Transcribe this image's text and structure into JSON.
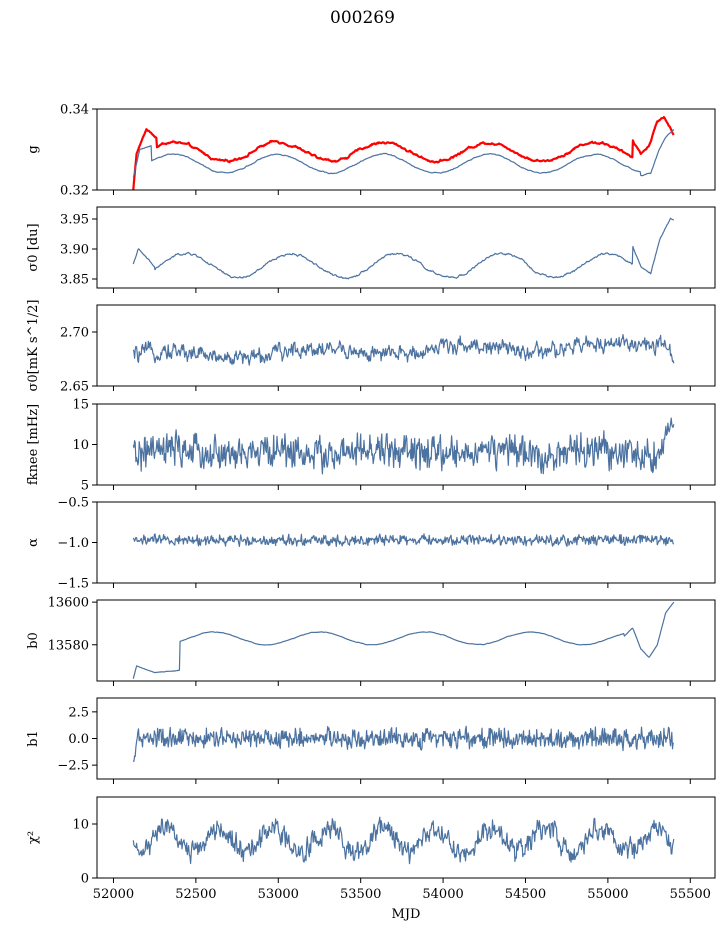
{
  "figure": {
    "title": "000269",
    "xlabel": "MJD"
  },
  "chart_data": {
    "type": "line",
    "x_range": [
      51900,
      55650
    ],
    "x_ticks": [
      52000,
      52500,
      53000,
      53500,
      54000,
      54500,
      55000,
      55500
    ],
    "x_tick_labels": [
      "52000",
      "52500",
      "53000",
      "53500",
      "54000",
      "54500",
      "55000",
      "55500"
    ],
    "x_start": 52120,
    "x_end": 55400,
    "panels": [
      {
        "id": "g",
        "ylabel": "g",
        "ylim": [
          0.32,
          0.34
        ],
        "y_ticks": [
          0.32,
          0.34
        ],
        "y_tick_labels": [
          "0.32",
          "0.34"
        ],
        "series": [
          {
            "color": "#ff0000",
            "width": 2.2,
            "model": "sine",
            "base": 0.3295,
            "amp": 0.0023,
            "period": 640,
            "phase": 52200,
            "noise": 0.0009,
            "smooth": 0.9,
            "anchors": [
              [
                52120,
                0.32
              ],
              [
                52140,
                0.329
              ],
              [
                52200,
                0.335
              ],
              [
                52260,
                0.333
              ]
            ],
            "tail": [
              [
                55150,
                0.3325
              ],
              [
                55200,
                0.329
              ],
              [
                55250,
                0.331
              ],
              [
                55300,
                0.337
              ],
              [
                55340,
                0.338
              ],
              [
                55370,
                0.336
              ],
              [
                55400,
                0.3335
              ]
            ]
          },
          {
            "color": "#4c72a0",
            "width": 1.2,
            "model": "sine",
            "base": 0.3265,
            "amp": 0.0023,
            "period": 640,
            "phase": 52200,
            "noise": 0.0004,
            "smooth": 0.9,
            "anchors": [
              [
                52120,
                0.323
              ],
              [
                52160,
                0.33
              ],
              [
                52230,
                0.331
              ]
            ],
            "tail": [
              [
                55200,
                0.3235
              ],
              [
                55260,
                0.324
              ],
              [
                55310,
                0.33
              ],
              [
                55350,
                0.333
              ],
              [
                55400,
                0.335
              ]
            ]
          }
        ]
      },
      {
        "id": "sigma0_du",
        "ylabel": "σ0 [du]",
        "ylim": [
          3.835,
          3.97
        ],
        "y_ticks": [
          3.85,
          3.9,
          3.95
        ],
        "y_tick_labels": [
          "3.85",
          "3.90",
          "3.95"
        ],
        "series": [
          {
            "color": "#4c72a0",
            "width": 1.2,
            "model": "sine",
            "base": 3.872,
            "amp": 0.02,
            "period": 640,
            "phase": 52280,
            "noise": 0.004,
            "smooth": 0.85,
            "anchors": [
              [
                52120,
                3.875
              ],
              [
                52150,
                3.9
              ],
              [
                52250,
                3.87
              ]
            ],
            "tail": [
              [
                55150,
                3.905
              ],
              [
                55200,
                3.87
              ],
              [
                55260,
                3.86
              ],
              [
                55320,
                3.92
              ],
              [
                55380,
                3.95
              ],
              [
                55400,
                3.95
              ]
            ]
          }
        ]
      },
      {
        "id": "sigma0_mK",
        "ylabel": "σ0[mK s^1/2]",
        "ylim": [
          2.65,
          2.725
        ],
        "y_ticks": [
          2.65,
          2.7
        ],
        "y_tick_labels": [
          "2.65",
          "2.70"
        ],
        "series": [
          {
            "color": "#4c72a0",
            "width": 1.2,
            "model": "noise",
            "base": 2.678,
            "amp": 0.004,
            "period": 900,
            "phase": 52100,
            "noise": 0.006,
            "smooth": 0.5,
            "trend": 3e-06,
            "anchors": [
              [
                52120,
                2.662
              ]
            ],
            "tail": [
              [
                55380,
                2.674
              ],
              [
                55400,
                2.676
              ]
            ]
          }
        ]
      },
      {
        "id": "fknee",
        "ylabel": "fknee [mHz]",
        "ylim": [
          5,
          15
        ],
        "y_ticks": [
          5,
          10,
          15
        ],
        "y_tick_labels": [
          "5",
          "10",
          "15"
        ],
        "series": [
          {
            "color": "#4c72a0",
            "width": 1.2,
            "model": "noise",
            "base": 9.0,
            "amp": 0.3,
            "period": 640,
            "phase": 52200,
            "noise": 1.1,
            "smooth": 0.2,
            "anchors": [
              [
                52120,
                8.5
              ]
            ],
            "tail": [
              [
                55340,
                10.5
              ],
              [
                55370,
                12.5
              ],
              [
                55400,
                11.5
              ]
            ]
          }
        ]
      },
      {
        "id": "alpha",
        "ylabel": "α",
        "ylim": [
          -1.5,
          -0.5
        ],
        "y_ticks": [
          -1.5,
          -1.0,
          -0.5
        ],
        "y_tick_labels": [
          "−1.5",
          "−1.0",
          "−0.5"
        ],
        "series": [
          {
            "color": "#4c72a0",
            "width": 1.2,
            "model": "noise",
            "base": -0.97,
            "amp": 0.0,
            "period": 640,
            "phase": 52200,
            "noise": 0.035,
            "smooth": 0.2,
            "anchors": [
              [
                52120,
                -0.95
              ]
            ],
            "tail": [
              [
                55400,
                -0.95
              ]
            ]
          }
        ]
      },
      {
        "id": "b0",
        "ylabel": "b0",
        "ylim": [
          13563,
          13601
        ],
        "y_ticks": [
          13580,
          13600
        ],
        "y_tick_labels": [
          "13580",
          "13600"
        ],
        "series": [
          {
            "color": "#4c72a0",
            "width": 1.2,
            "model": "sine",
            "base": 13583,
            "amp": 3.0,
            "period": 640,
            "phase": 52450,
            "noise": 0.3,
            "smooth": 0.85,
            "anchors": [
              [
                52120,
                13564
              ],
              [
                52140,
                13570
              ],
              [
                52250,
                13567
              ],
              [
                52400,
                13568
              ]
            ],
            "tail": [
              [
                55100,
                13584
              ],
              [
                55150,
                13588
              ],
              [
                55200,
                13578
              ],
              [
                55250,
                13574
              ],
              [
                55300,
                13580
              ],
              [
                55350,
                13595
              ],
              [
                55400,
                13600
              ]
            ]
          }
        ]
      },
      {
        "id": "b1",
        "ylabel": "b1",
        "ylim": [
          -3.8,
          3.8
        ],
        "y_ticks": [
          -2.5,
          0.0,
          2.5
        ],
        "y_tick_labels": [
          "−2.5",
          "0.0",
          "2.5"
        ],
        "series": [
          {
            "color": "#4c72a0",
            "width": 1.2,
            "model": "noise",
            "base": 0.0,
            "amp": 0.0,
            "period": 640,
            "phase": 52200,
            "noise": 0.45,
            "smooth": 0.1,
            "anchors": [
              [
                52120,
                -2.7
              ],
              [
                52140,
                -0.4
              ]
            ],
            "tail": [
              [
                55390,
                -0.8
              ],
              [
                55400,
                0.0
              ]
            ]
          }
        ]
      },
      {
        "id": "chi2",
        "ylabel": "χ²",
        "ylim": [
          0,
          15
        ],
        "y_ticks": [
          0,
          10
        ],
        "y_tick_labels": [
          "0",
          "10"
        ],
        "series": [
          {
            "color": "#4c72a0",
            "width": 1.2,
            "model": "sine",
            "base": 7.0,
            "amp": 2.2,
            "period": 330,
            "phase": 52230,
            "noise": 1.3,
            "smooth": 0.35,
            "anchors": [
              [
                52120,
                6.5
              ]
            ],
            "tail": [
              [
                55400,
                7.5
              ]
            ]
          }
        ]
      }
    ]
  }
}
